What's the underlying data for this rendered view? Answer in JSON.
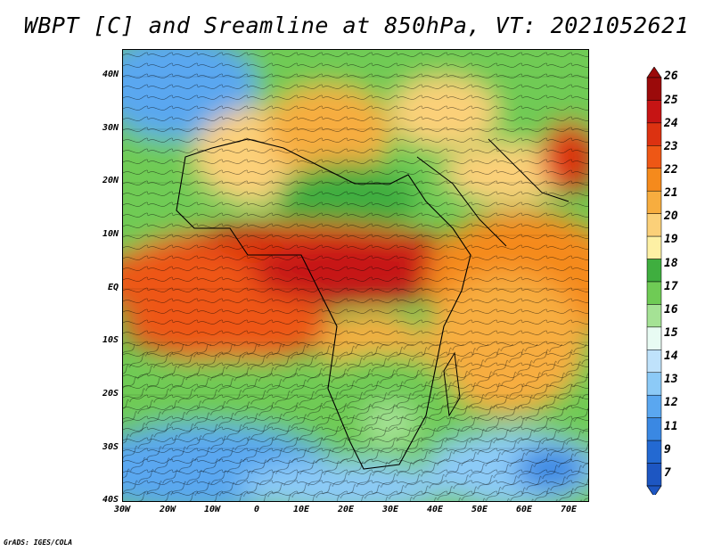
{
  "title": "WBPT [C] and Sreamline at 850hPa, VT: 2021052621",
  "credit": "GrADS: IGES/COLA",
  "map": {
    "lat_labels": [
      "40N",
      "30N",
      "20N",
      "10N",
      "EQ",
      "10S",
      "20S",
      "30S",
      "40S"
    ],
    "lon_labels": [
      "30W",
      "20W",
      "10W",
      "0",
      "10E",
      "20E",
      "30E",
      "40E",
      "50E",
      "60E",
      "70E"
    ]
  },
  "colorbar": {
    "labels": [
      "26",
      "25",
      "24",
      "23",
      "22",
      "21",
      "20",
      "19",
      "18",
      "17",
      "16",
      "15",
      "14",
      "13",
      "12",
      "11",
      "9",
      "7"
    ],
    "colors": [
      "#9b0a0a",
      "#c61414",
      "#dc3211",
      "#ee5715",
      "#f58a1c",
      "#f7ad3f",
      "#fbd079",
      "#fdf0a4",
      "#3fae3f",
      "#6fcb55",
      "#a5e295",
      "#e8fbf3",
      "#bfe2fb",
      "#8ccaf7",
      "#5aa7f0",
      "#3a88e3",
      "#2369d2",
      "#1d56c2"
    ]
  }
}
